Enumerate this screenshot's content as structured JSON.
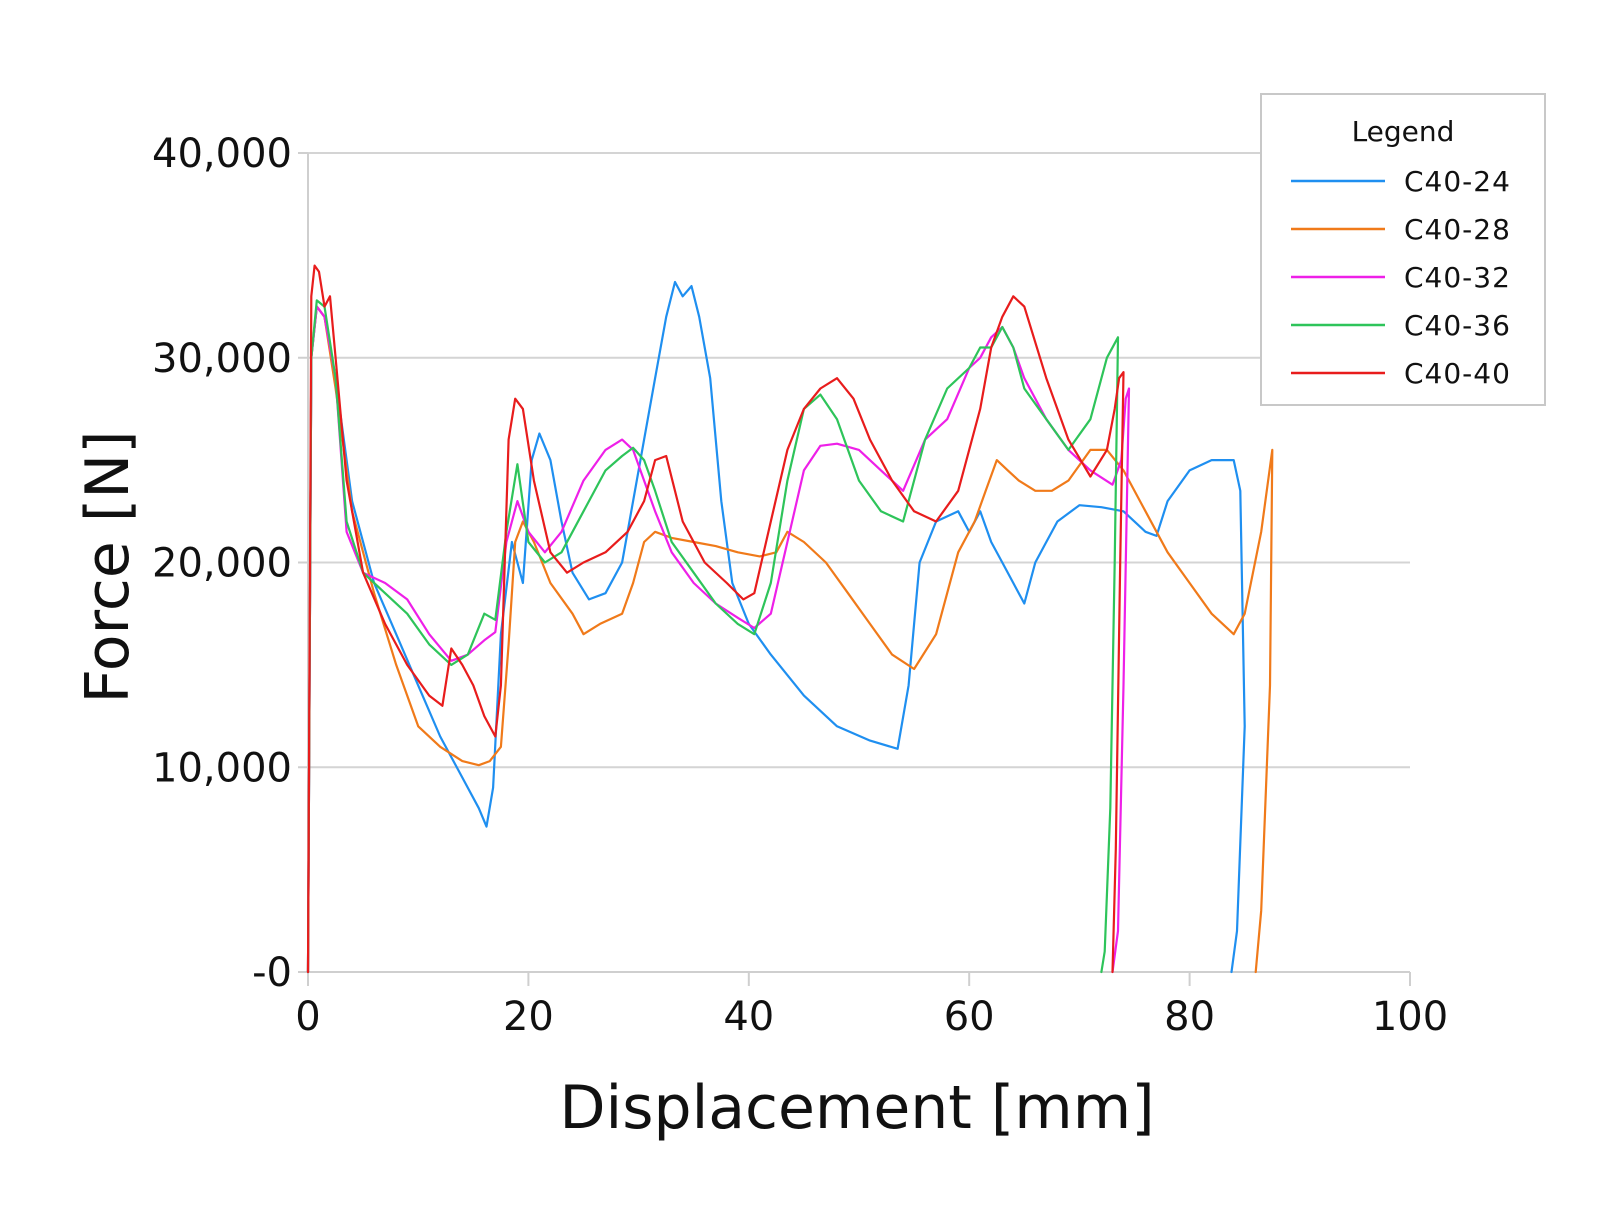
{
  "chart_data": {
    "type": "line",
    "title": "",
    "xlabel": "Displacement [mm]",
    "ylabel": "Force [N]",
    "xlim": [
      0,
      100
    ],
    "ylim": [
      0,
      40000
    ],
    "x_ticks": [
      0,
      20,
      40,
      60,
      80,
      100
    ],
    "x_tick_labels": [
      "0",
      "20",
      "40",
      "60",
      "80",
      "100"
    ],
    "y_ticks": [
      0,
      10000,
      20000,
      30000,
      40000
    ],
    "y_tick_labels": [
      "-0",
      "10,000",
      "20,000",
      "30,000",
      "40,000"
    ],
    "grid": "horizontal",
    "legend": {
      "title": "Legend",
      "position": "top-right"
    },
    "series": [
      {
        "name": "C40-24",
        "color": "#1f8ff0",
        "x": [
          0,
          0.3,
          0.8,
          1.5,
          2.5,
          4,
          6,
          8,
          10,
          12,
          14,
          15.5,
          16.2,
          16.8,
          17.5,
          18.5,
          19.5,
          20.3,
          21,
          22,
          23,
          24,
          25.5,
          27,
          28.5,
          29.5,
          30.5,
          31.5,
          32.5,
          33.3,
          34,
          34.8,
          35.5,
          36.5,
          37.5,
          38.5,
          40,
          42,
          45,
          48,
          51,
          53.5,
          54.5,
          55.5,
          57,
          59,
          60,
          61,
          62,
          63,
          64,
          65,
          66,
          67,
          68,
          70,
          72,
          74,
          76,
          77,
          78,
          80,
          82,
          84,
          84.6,
          85,
          84.3,
          83.8
        ],
        "y": [
          0,
          30000,
          32500,
          32000,
          29000,
          23000,
          19000,
          16500,
          14000,
          11500,
          9500,
          8000,
          7100,
          9000,
          16500,
          21000,
          19000,
          25000,
          26300,
          25000,
          22000,
          19500,
          18200,
          18500,
          20000,
          23000,
          26000,
          29000,
          32000,
          33700,
          33000,
          33500,
          32000,
          29000,
          23000,
          19000,
          17000,
          15500,
          13500,
          12000,
          11300,
          10900,
          14000,
          20000,
          22000,
          22500,
          21500,
          22500,
          21000,
          20000,
          19000,
          18000,
          20000,
          21000,
          22000,
          22800,
          22700,
          22500,
          21500,
          21300,
          23000,
          24500,
          25000,
          25000,
          23500,
          12000,
          2000,
          0
        ]
      },
      {
        "name": "C40-28",
        "color": "#f07a1a",
        "x": [
          0,
          0.3,
          0.8,
          1.5,
          2.5,
          4,
          6,
          8,
          10,
          12,
          14,
          15.5,
          16.5,
          17.5,
          18.2,
          18.8,
          19.5,
          20.5,
          22,
          24,
          25,
          26.5,
          28.5,
          29.5,
          30.5,
          31.5,
          33,
          35,
          37,
          39,
          41,
          42.5,
          43.5,
          45,
          47,
          49,
          51,
          53,
          55,
          57,
          59,
          60.5,
          61.5,
          62.5,
          63.5,
          64.5,
          66,
          67.5,
          69,
          71,
          72.5,
          74,
          76,
          78,
          80,
          82,
          84,
          85,
          86.5,
          87.5,
          87.3,
          86.5,
          86
        ],
        "y": [
          0,
          30000,
          32500,
          32000,
          28500,
          22500,
          18500,
          15000,
          12000,
          11000,
          10300,
          10100,
          10300,
          11000,
          16000,
          21000,
          22000,
          21000,
          19000,
          17500,
          16500,
          17000,
          17500,
          19000,
          21000,
          21500,
          21200,
          21000,
          20800,
          20500,
          20300,
          20500,
          21500,
          21000,
          20000,
          18500,
          17000,
          15500,
          14800,
          16500,
          20500,
          22000,
          23500,
          25000,
          24500,
          24000,
          23500,
          23500,
          24000,
          25500,
          25500,
          24500,
          22500,
          20500,
          19000,
          17500,
          16500,
          17500,
          21500,
          25500,
          14000,
          3000,
          0
        ]
      },
      {
        "name": "C40-32",
        "color": "#ee20e8",
        "x": [
          0,
          0.3,
          0.8,
          1.5,
          2.5,
          3.5,
          5,
          7,
          9,
          11,
          13,
          14.5,
          16,
          17,
          18,
          19,
          20,
          21.5,
          23,
          25,
          27,
          28.5,
          29.5,
          30.5,
          31.5,
          33,
          35,
          37,
          39,
          40.5,
          42,
          43.5,
          45,
          46.5,
          48,
          50,
          52,
          54,
          56,
          58,
          60,
          61,
          62,
          63,
          64,
          65,
          67,
          69,
          71,
          73,
          73.8,
          74.2,
          74.5,
          74,
          73.5,
          73
        ],
        "y": [
          0,
          30000,
          32500,
          32000,
          29000,
          21500,
          19500,
          19000,
          18200,
          16500,
          15200,
          15500,
          16200,
          16600,
          21000,
          23000,
          21500,
          20500,
          21500,
          24000,
          25500,
          26000,
          25500,
          24000,
          22500,
          20500,
          19000,
          18000,
          17300,
          16800,
          17500,
          21000,
          24500,
          25700,
          25800,
          25500,
          24500,
          23500,
          26000,
          27000,
          29500,
          30000,
          31000,
          31500,
          30500,
          29000,
          27000,
          25500,
          24500,
          23800,
          25000,
          28000,
          28500,
          14000,
          2000,
          0
        ]
      },
      {
        "name": "C40-36",
        "color": "#2ec45a",
        "x": [
          0,
          0.3,
          0.8,
          1.5,
          2.5,
          3.5,
          5,
          7,
          9,
          11,
          13,
          14.5,
          16,
          17,
          18,
          19,
          20,
          21.5,
          23,
          25,
          27,
          28.5,
          29.5,
          30.5,
          31.5,
          33,
          35,
          37,
          39,
          40.5,
          42,
          43.5,
          45,
          46.5,
          48,
          50,
          52,
          54,
          56,
          58,
          60,
          61,
          62,
          63,
          64,
          65,
          67,
          69,
          71,
          72.5,
          73.5,
          73.2,
          72.8,
          72.3,
          72
        ],
        "y": [
          0,
          30000,
          32800,
          32500,
          29000,
          22000,
          19500,
          18500,
          17500,
          16000,
          15000,
          15500,
          17500,
          17200,
          21500,
          24800,
          21000,
          20000,
          20500,
          22500,
          24500,
          25200,
          25600,
          25000,
          23500,
          21000,
          19500,
          18000,
          17000,
          16500,
          19000,
          24000,
          27500,
          28200,
          27000,
          24000,
          22500,
          22000,
          26000,
          28500,
          29500,
          30500,
          30500,
          31500,
          30500,
          28500,
          27000,
          25500,
          27000,
          30000,
          31000,
          20000,
          8000,
          1000,
          0
        ]
      },
      {
        "name": "C40-40",
        "color": "#e81c1c",
        "x": [
          0,
          0.3,
          0.6,
          1,
          1.5,
          2,
          2.5,
          3.5,
          5,
          7,
          9,
          11,
          12.2,
          13,
          14,
          15,
          16,
          17,
          17.5,
          18.2,
          18.8,
          19.5,
          20.5,
          22,
          23.5,
          25,
          27,
          29,
          30.5,
          31.5,
          32.5,
          34,
          36,
          38,
          39.5,
          40.5,
          42,
          43.5,
          45,
          46.5,
          48,
          49.5,
          51,
          53,
          55,
          57,
          59,
          61,
          62,
          63,
          64,
          65,
          67,
          69,
          71,
          72.5,
          73.2,
          73.6,
          74,
          73.7,
          73.3,
          73
        ],
        "y": [
          0,
          33000,
          34500,
          34200,
          32500,
          33000,
          30000,
          24000,
          19500,
          17000,
          15000,
          13500,
          13000,
          15800,
          15000,
          14000,
          12500,
          11500,
          14000,
          26000,
          28000,
          27500,
          24000,
          20500,
          19500,
          20000,
          20500,
          21500,
          23000,
          25000,
          25200,
          22000,
          20000,
          19000,
          18200,
          18500,
          22000,
          25500,
          27500,
          28500,
          29000,
          28000,
          26000,
          24000,
          22500,
          22000,
          23500,
          27500,
          30500,
          32000,
          33000,
          32500,
          29000,
          26000,
          24200,
          25500,
          27500,
          29000,
          29300,
          20000,
          6000,
          0
        ]
      }
    ]
  }
}
